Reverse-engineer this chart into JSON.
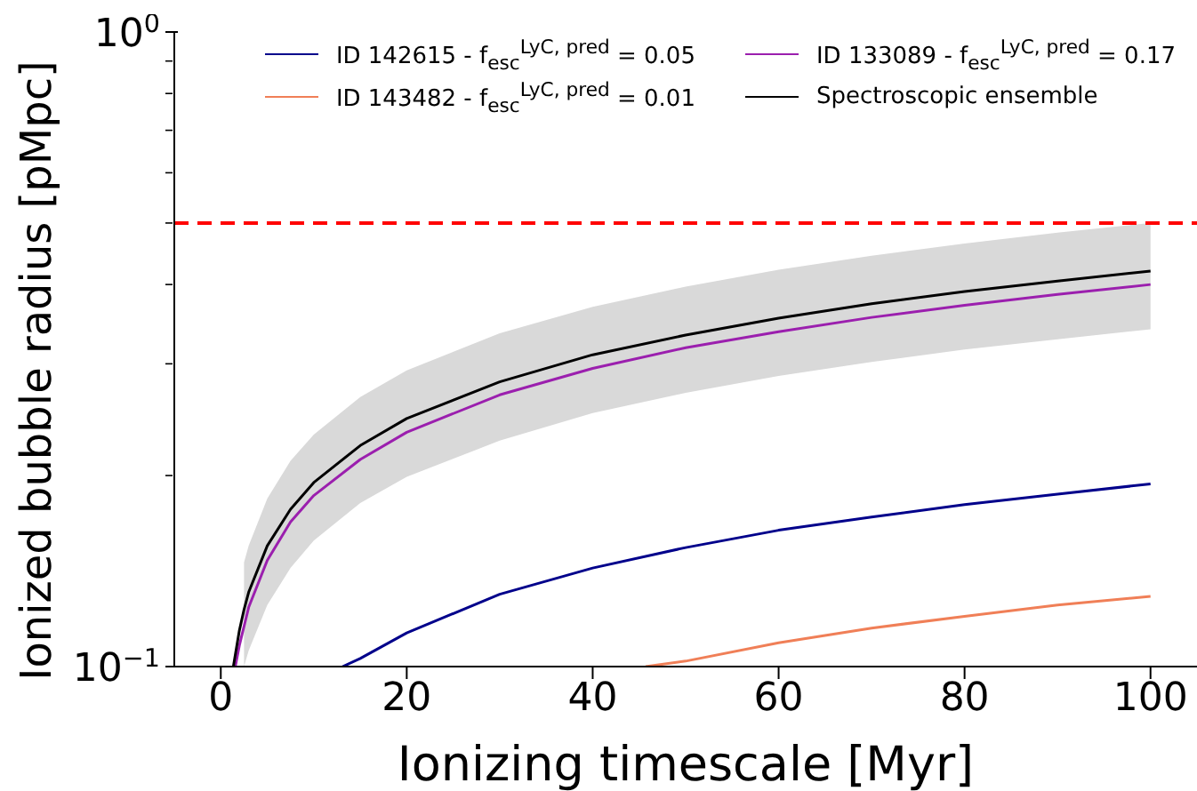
{
  "chart_data": {
    "type": "line",
    "xlabel": "Ionizing timescale [Myr]",
    "ylabel": "Ionized bubble radius [pMpc]",
    "log": "y",
    "xlim": [
      -5,
      105
    ],
    "xticks": [
      0,
      20,
      40,
      60,
      80,
      100
    ],
    "ylim": [
      0.1,
      1
    ],
    "yticks": [
      {
        "value": 0.1,
        "label": "10$^{−1}$"
      },
      {
        "value": 0.2,
        "label": null
      },
      {
        "value": 0.3,
        "label": null
      },
      {
        "value": 0.4,
        "label": null
      },
      {
        "value": 0.5,
        "label": null
      },
      {
        "value": 0.6,
        "label": null
      },
      {
        "value": 0.7,
        "label": null
      },
      {
        "value": 0.8,
        "label": null
      },
      {
        "value": 0.9,
        "label": null
      },
      {
        "value": 1,
        "label": "10$^{0}$"
      }
    ],
    "grid": false,
    "legend": "top right",
    "line_style": "solid",
    "marker": "none",
    "series": [
      {
        "name": "ID 142615 - f$_{esc}$$^{LyC, pred}$ = 0.05",
        "color": "#00008b",
        "x": [
          13.1,
          15,
          20,
          30,
          40,
          50,
          60,
          70,
          80,
          90,
          100
        ],
        "values": [
          0.1,
          0.103,
          0.113,
          0.13,
          0.143,
          0.154,
          0.164,
          0.172,
          0.18,
          0.187,
          0.194
        ]
      },
      {
        "name": "ID 133089 - f$_{esc}$$^{LyC, pred}$ = 0.17",
        "color": "#9b1fae",
        "x": [
          1.56,
          2,
          3,
          5,
          7.5,
          10,
          15,
          20,
          30,
          40,
          50,
          60,
          70,
          80,
          90,
          100
        ],
        "values": [
          0.1,
          0.108,
          0.124,
          0.147,
          0.169,
          0.186,
          0.212,
          0.234,
          0.268,
          0.295,
          0.318,
          0.337,
          0.355,
          0.371,
          0.386,
          0.4
        ]
      },
      {
        "name": "ID 143482 - f$_{esc}$$^{LyC, pred}$ = 0.01",
        "color": "#f07f57",
        "x": [
          45.7,
          50,
          60,
          70,
          80,
          90,
          100
        ],
        "values": [
          0.1,
          0.102,
          0.109,
          0.115,
          0.12,
          0.125,
          0.129
        ]
      },
      {
        "name": "Spectroscopic ensemble",
        "color": "#000000",
        "x": [
          1.35,
          2,
          2.5,
          3,
          5,
          7.5,
          10,
          15,
          20,
          30,
          40,
          50,
          60,
          70,
          80,
          90,
          100
        ],
        "values": [
          0.1,
          0.114,
          0.123,
          0.131,
          0.155,
          0.177,
          0.195,
          0.223,
          0.246,
          0.281,
          0.31,
          0.333,
          0.354,
          0.373,
          0.39,
          0.405,
          0.42
        ],
        "lower": [
          null,
          null,
          0.1,
          0.106,
          0.125,
          0.143,
          0.158,
          0.181,
          0.199,
          0.227,
          0.251,
          0.27,
          0.287,
          0.302,
          0.316,
          0.328,
          0.34
        ],
        "upper": [
          null,
          null,
          0.146,
          0.155,
          0.184,
          0.211,
          0.232,
          0.266,
          0.293,
          0.335,
          0.369,
          0.397,
          0.422,
          0.444,
          0.464,
          0.483,
          0.5
        ]
      }
    ],
    "ref_lines": [
      {
        "axis": "y",
        "value": 0.5,
        "color": "#ff0000",
        "line_style": "dashed"
      }
    ]
  }
}
